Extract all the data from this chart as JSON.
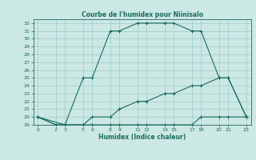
{
  "title": "Courbe de l'humidex pour Niinisalo",
  "xlabel": "Humidex (Indice chaleur)",
  "bg_color": "#cce8e4",
  "line_color": "#1a6b5e",
  "grid_color": "#99cccc",
  "ylim": [
    19,
    32.5
  ],
  "xlim": [
    -0.5,
    23.5
  ],
  "yticks": [
    19,
    20,
    21,
    22,
    23,
    24,
    25,
    26,
    27,
    28,
    29,
    30,
    31,
    32
  ],
  "xticks": [
    0,
    2,
    3,
    5,
    6,
    8,
    9,
    11,
    12,
    14,
    15,
    17,
    18,
    20,
    21,
    23
  ],
  "line1_x": [
    0,
    2,
    3,
    5,
    6,
    8,
    9,
    11,
    12,
    14,
    15,
    17,
    18,
    20,
    21,
    23
  ],
  "line1_y": [
    20,
    19,
    19,
    19,
    19,
    19,
    19,
    19,
    19,
    19,
    19,
    19,
    20,
    20,
    20,
    20
  ],
  "line2_x": [
    0,
    2,
    3,
    5,
    6,
    8,
    9,
    11,
    12,
    14,
    15,
    17,
    18,
    20,
    21,
    23
  ],
  "line2_y": [
    20,
    19,
    19,
    19,
    20,
    20,
    21,
    22,
    22,
    23,
    23,
    24,
    24,
    25,
    25,
    20
  ],
  "line3_x": [
    0,
    3,
    5,
    6,
    8,
    9,
    11,
    12,
    14,
    15,
    17,
    18,
    20,
    21,
    23
  ],
  "line3_y": [
    20,
    19,
    25,
    25,
    31,
    31,
    32,
    32,
    32,
    32,
    31,
    31,
    25,
    25,
    20
  ]
}
